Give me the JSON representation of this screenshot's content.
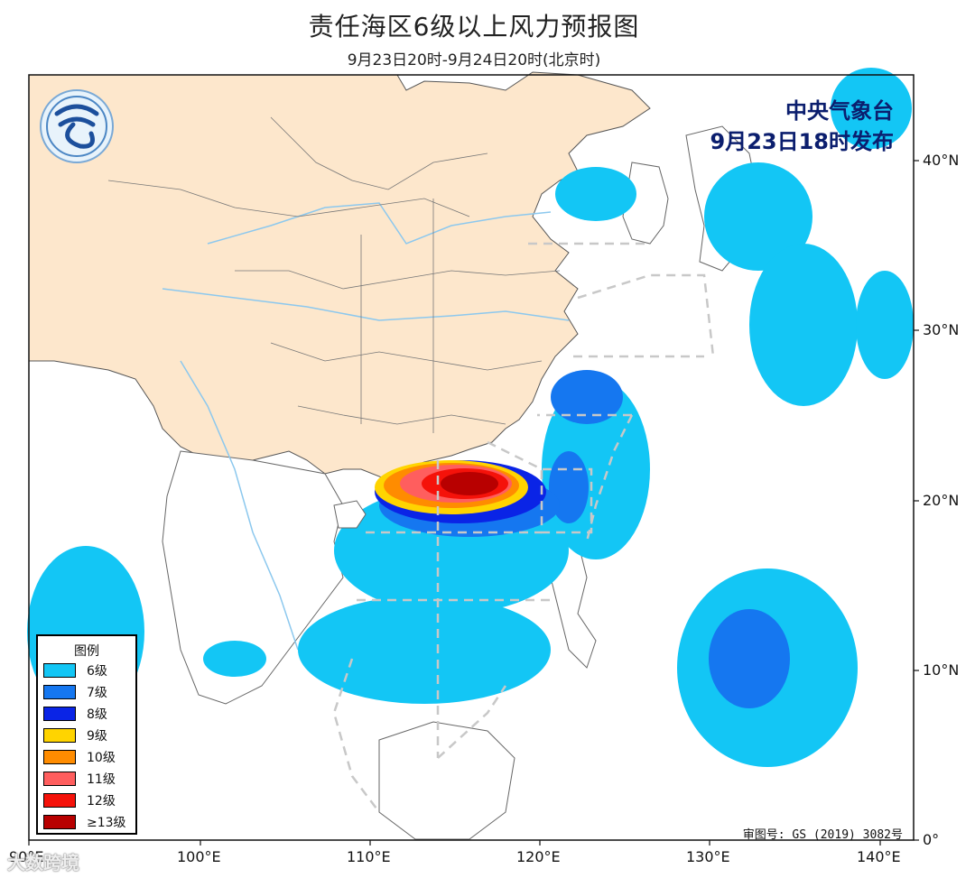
{
  "title": "责任海区6级以上风力预报图",
  "subtitle": "9月23日20时-9月24日20时(北京时)",
  "issuer": {
    "org": "中央气象台",
    "time": "9月23日18时发布"
  },
  "legend": {
    "title": "图例",
    "items": [
      {
        "label": "6级",
        "color": "#13c6f5"
      },
      {
        "label": "7级",
        "color": "#1577f0"
      },
      {
        "label": "8级",
        "color": "#0a24e6"
      },
      {
        "label": "9级",
        "color": "#ffd400"
      },
      {
        "label": "10级",
        "color": "#ff8c00"
      },
      {
        "label": "11级",
        "color": "#ff5e5e"
      },
      {
        "label": "12级",
        "color": "#f5120a"
      },
      {
        "label": "≥13级",
        "color": "#b80000"
      }
    ]
  },
  "axes": {
    "lon_labels": [
      "90°E",
      "100°E",
      "110°E",
      "120°E",
      "130°E",
      "140°E"
    ],
    "lat_labels": [
      "40°N",
      "30°N",
      "20°N",
      "10°N",
      "0°"
    ]
  },
  "approval": "审图号: GS (2019) 3082号",
  "watermark": "大数跨境",
  "colors": {
    "land_china": "#fde7cc",
    "ocean": "#ffffff",
    "border": "#555555",
    "river": "#8cc8ee",
    "dashed": "#c8c8c8"
  }
}
